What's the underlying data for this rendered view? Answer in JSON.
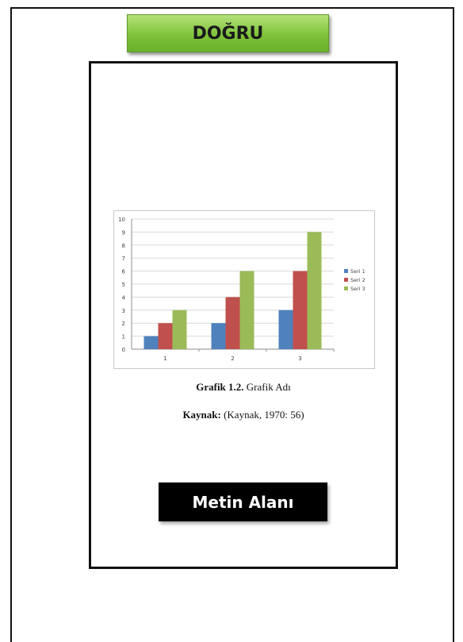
{
  "badge": {
    "label": "DOĞRU"
  },
  "caption": {
    "figure_prefix": "Grafik 1.2.",
    "figure_title": "Grafik Adı",
    "source_prefix": "Kaynak:",
    "source_text": "(Kaynak, 1970: 56)"
  },
  "text_area": {
    "label": "Metin Alanı"
  },
  "colors": {
    "badge_green": "#7fc33a",
    "series1": "#4f81bd",
    "series2": "#c0504d",
    "series3": "#9bbb59"
  },
  "chart_data": {
    "type": "bar",
    "categories": [
      "1",
      "2",
      "3"
    ],
    "series": [
      {
        "name": "Seri 1",
        "values": [
          1,
          2,
          3
        ]
      },
      {
        "name": "Seri 2",
        "values": [
          2,
          4,
          6
        ]
      },
      {
        "name": "Seri 3",
        "values": [
          3,
          6,
          9
        ]
      }
    ],
    "ylim": [
      0,
      10
    ],
    "yticks": [
      0,
      1,
      2,
      3,
      4,
      5,
      6,
      7,
      8,
      9,
      10
    ],
    "grid": true,
    "legend": "right"
  }
}
